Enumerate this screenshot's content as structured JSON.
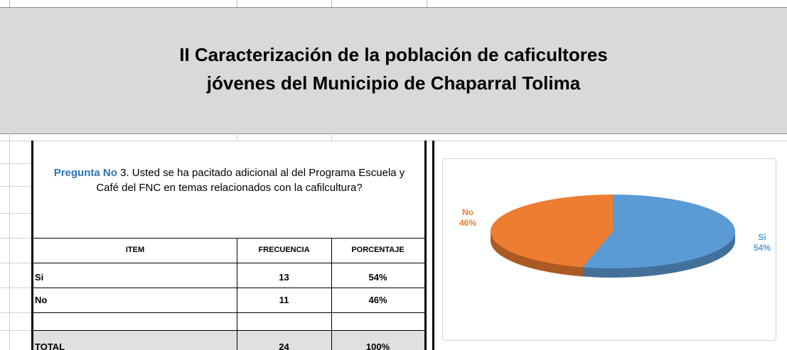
{
  "header": {
    "title": [
      "II Caracterización de la población de caficultores",
      "jóvenes del  Municipio de Chaparral  Tolima"
    ]
  },
  "question": {
    "label": "Pregunta No",
    "text": "3. Usted se ha pacitado adicional al del Programa Escuela y Café del FNC  en temas relacionados con la cafilcultura?"
  },
  "table": {
    "columns": [
      "ITEM",
      "FRECUENCIA",
      "PORCENTAJE"
    ],
    "rows": [
      [
        "Si",
        13,
        "54%"
      ],
      [
        "No",
        11,
        "46%"
      ]
    ],
    "total": [
      "TOTAL",
      24,
      "100%"
    ]
  },
  "chart_data": {
    "type": "pie",
    "categories": [
      "Si",
      "No"
    ],
    "values": [
      54,
      46
    ],
    "value_labels": [
      "54%",
      "46%"
    ],
    "colors": [
      "#5b9bd5",
      "#ed7d31"
    ]
  }
}
